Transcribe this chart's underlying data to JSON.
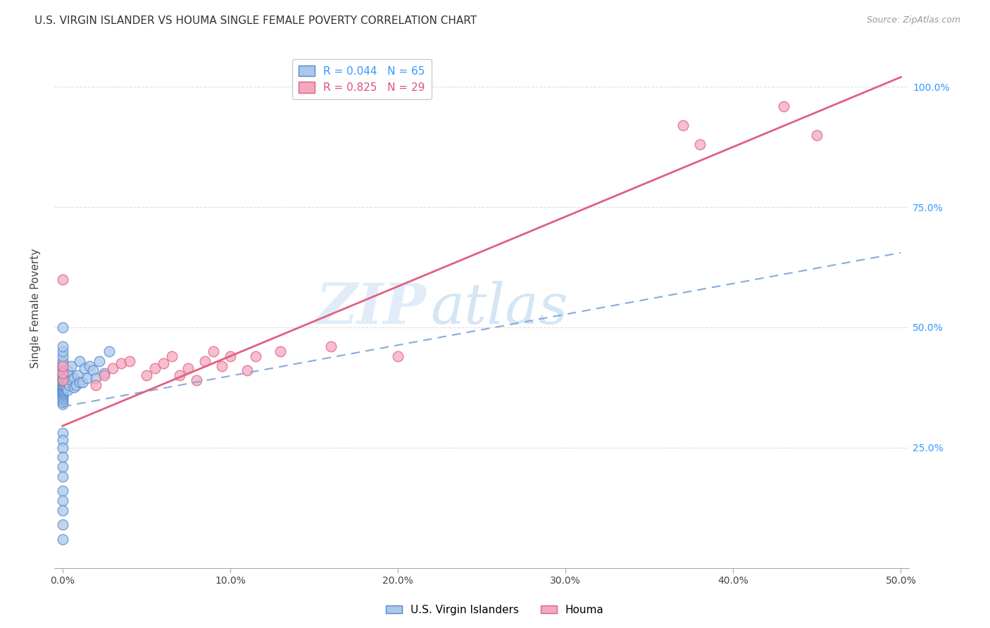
{
  "title": "U.S. VIRGIN ISLANDER VS HOUMA SINGLE FEMALE POVERTY CORRELATION CHART",
  "source": "Source: ZipAtlas.com",
  "xlabel_vals": [
    0.0,
    0.1,
    0.2,
    0.3,
    0.4,
    0.5
  ],
  "xlabel_ticks": [
    "0.0%",
    "10.0%",
    "20.0%",
    "30.0%",
    "40.0%",
    "50.0%"
  ],
  "ylabel_right_vals": [
    0.25,
    0.5,
    0.75,
    1.0
  ],
  "ylabel_right_ticks": [
    "25.0%",
    "50.0%",
    "75.0%",
    "100.0%"
  ],
  "xlim": [
    -0.005,
    0.505
  ],
  "ylim": [
    0.0,
    1.08
  ],
  "ylabel": "Single Female Poverty",
  "watermark_zip": "ZIP",
  "watermark_atlas": "atlas",
  "blue_color": "#aac8ea",
  "pink_color": "#f4a8be",
  "blue_edge_color": "#5588cc",
  "pink_edge_color": "#e06080",
  "blue_line_color": "#88aadd",
  "pink_line_color": "#e06080",
  "blue_scatter_x": [
    0.0,
    0.0,
    0.0,
    0.0,
    0.0,
    0.0,
    0.0,
    0.0,
    0.0,
    0.0,
    0.0,
    0.0,
    0.0,
    0.0,
    0.0,
    0.0,
    0.0,
    0.0,
    0.0,
    0.0,
    0.0,
    0.0,
    0.0,
    0.0,
    0.0,
    0.0,
    0.0,
    0.0,
    0.0,
    0.0,
    0.002,
    0.002,
    0.003,
    0.003,
    0.003,
    0.004,
    0.004,
    0.005,
    0.005,
    0.007,
    0.007,
    0.008,
    0.009,
    0.01,
    0.01,
    0.012,
    0.013,
    0.015,
    0.016,
    0.018,
    0.02,
    0.022,
    0.025,
    0.028,
    0.0,
    0.0,
    0.0,
    0.0,
    0.0,
    0.0,
    0.0,
    0.0,
    0.0,
    0.0,
    0.0
  ],
  "blue_scatter_y": [
    0.34,
    0.345,
    0.35,
    0.355,
    0.36,
    0.362,
    0.365,
    0.368,
    0.37,
    0.372,
    0.375,
    0.378,
    0.38,
    0.382,
    0.385,
    0.388,
    0.39,
    0.393,
    0.396,
    0.4,
    0.405,
    0.41,
    0.415,
    0.42,
    0.425,
    0.43,
    0.44,
    0.45,
    0.46,
    0.5,
    0.375,
    0.39,
    0.37,
    0.385,
    0.41,
    0.38,
    0.4,
    0.39,
    0.42,
    0.375,
    0.395,
    0.38,
    0.4,
    0.385,
    0.43,
    0.385,
    0.415,
    0.395,
    0.42,
    0.41,
    0.395,
    0.43,
    0.405,
    0.45,
    0.28,
    0.265,
    0.25,
    0.23,
    0.21,
    0.19,
    0.16,
    0.14,
    0.12,
    0.09,
    0.06
  ],
  "pink_scatter_x": [
    0.0,
    0.0,
    0.0,
    0.0,
    0.02,
    0.025,
    0.03,
    0.035,
    0.04,
    0.05,
    0.055,
    0.06,
    0.065,
    0.07,
    0.075,
    0.08,
    0.085,
    0.09,
    0.095,
    0.1,
    0.11,
    0.115,
    0.13,
    0.16,
    0.2,
    0.37,
    0.38,
    0.43,
    0.45
  ],
  "pink_scatter_y": [
    0.39,
    0.405,
    0.42,
    0.6,
    0.38,
    0.4,
    0.415,
    0.425,
    0.43,
    0.4,
    0.415,
    0.425,
    0.44,
    0.4,
    0.415,
    0.39,
    0.43,
    0.45,
    0.42,
    0.44,
    0.41,
    0.44,
    0.45,
    0.46,
    0.44,
    0.92,
    0.88,
    0.96,
    0.9
  ],
  "grid_color": "#dddddd",
  "background_color": "#ffffff",
  "blue_line_x0": 0.0,
  "blue_line_y0": 0.335,
  "blue_line_x1": 0.5,
  "blue_line_y1": 0.655,
  "pink_line_x0": 0.0,
  "pink_line_y0": 0.295,
  "pink_line_x1": 0.5,
  "pink_line_y1": 1.02
}
